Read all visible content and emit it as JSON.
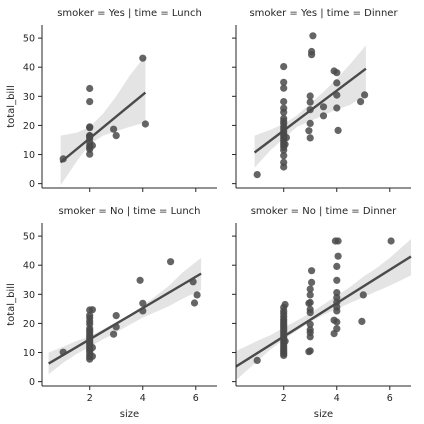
{
  "chart_data": [
    {
      "type": "scatter",
      "title": "smoker = Yes | time = Lunch",
      "xlabel": "",
      "ylabel": "total_bill",
      "xlim": [
        0.2,
        6.8
      ],
      "ylim": [
        -1.5,
        54.5
      ],
      "xticks": [
        2,
        4,
        6
      ],
      "yticks": [
        0,
        10,
        20,
        30,
        40,
        50
      ],
      "show_x_tick_labels": false,
      "show_y_tick_labels": true,
      "grid": false,
      "points": {
        "x": [
          1,
          2,
          2,
          2,
          2,
          2,
          2,
          2,
          2,
          2,
          2,
          2,
          2,
          2,
          2.1,
          2.9,
          3,
          4,
          4.1
        ],
        "y": [
          8.5,
          10.1,
          11.8,
          12.4,
          13,
          14.2,
          15.5,
          16.2,
          16.4,
          16.5,
          19.2,
          28.2,
          32.7,
          19.5,
          13.1,
          18.7,
          16.5,
          43.1,
          20.5
        ]
      },
      "regression": {
        "x0": 0.9,
        "y0": 7.3,
        "x1": 4.1,
        "y1": 31.3
      },
      "ci": {
        "x": [
          0.9,
          1.5,
          2,
          2.5,
          3,
          3.5,
          4.1
        ],
        "lower": [
          -0.5,
          7.5,
          13.5,
          16.5,
          18,
          19.5,
          21
        ],
        "upper": [
          16.5,
          17.5,
          19.5,
          24,
          30,
          37,
          44
        ]
      }
    },
    {
      "type": "scatter",
      "title": "smoker = Yes | time = Dinner",
      "xlabel": "",
      "ylabel": "",
      "xlim": [
        0.2,
        6.8
      ],
      "ylim": [
        -1.5,
        54.5
      ],
      "xticks": [
        2,
        4,
        6
      ],
      "yticks": [
        0,
        10,
        20,
        30,
        40,
        50
      ],
      "show_x_tick_labels": false,
      "show_y_tick_labels": false,
      "grid": false,
      "points": {
        "x": [
          1,
          2,
          2,
          2,
          2,
          2,
          2,
          2,
          2,
          2,
          2,
          2,
          2,
          2,
          2,
          2,
          2,
          2,
          2,
          2,
          2,
          2,
          2,
          2,
          2.05,
          2.1,
          2.95,
          3,
          3,
          3,
          3,
          3,
          3.05,
          3.1,
          3.5,
          3.5,
          3.9,
          4,
          4,
          4,
          4,
          4.05,
          4.9,
          5.05
        ],
        "y": [
          3.1,
          5.7,
          7.3,
          9.6,
          11.5,
          12.5,
          13.3,
          14,
          14.8,
          15.5,
          16.3,
          17,
          17.8,
          18.7,
          19.5,
          20.6,
          21.5,
          22.4,
          24.5,
          25.9,
          28.2,
          32.8,
          34.8,
          40.2,
          13.5,
          15.8,
          18.2,
          15.7,
          20.7,
          25.4,
          28,
          30.1,
          44.3,
          50.8,
          23.3,
          26.4,
          38.7,
          26,
          30.4,
          34.6,
          38.1,
          18.3,
          28.2,
          30.5
        ],
        "extra_x": [
          3.05
        ],
        "extra_y": [
          45.4
        ]
      },
      "regression": {
        "x0": 0.9,
        "y0": 10.7,
        "x1": 5.1,
        "y1": 39.5
      },
      "ci": {
        "x": [
          0.9,
          1.5,
          2,
          2.5,
          3,
          3.5,
          4,
          4.5,
          5.1
        ],
        "lower": [
          5.5,
          11.5,
          15.5,
          19.5,
          21.5,
          23.5,
          25.5,
          27,
          30.5
        ],
        "upper": [
          16.5,
          18.5,
          20.5,
          23.5,
          27.5,
          31.5,
          36,
          41,
          47.5
        ]
      }
    },
    {
      "type": "scatter",
      "title": "smoker = No | time = Lunch",
      "xlabel": "size",
      "ylabel": "total_bill",
      "xlim": [
        0.2,
        6.8
      ],
      "ylim": [
        -1.5,
        54.5
      ],
      "xticks": [
        2,
        4,
        6
      ],
      "yticks": [
        0,
        10,
        20,
        30,
        40,
        50
      ],
      "show_x_tick_labels": true,
      "show_y_tick_labels": true,
      "grid": false,
      "points": {
        "x": [
          1,
          2,
          2,
          2,
          2,
          2,
          2,
          2,
          2,
          2,
          2,
          2,
          2,
          2,
          2,
          2,
          2,
          2,
          2,
          2,
          2,
          2,
          2.1,
          2.1,
          2.1,
          2.9,
          3,
          3,
          3.9,
          4,
          4,
          5.05,
          5.9,
          5.95,
          6.05
        ],
        "y": [
          10.1,
          7.7,
          8.5,
          9.2,
          10.1,
          10.8,
          11.4,
          12,
          12.7,
          13.3,
          14,
          14.8,
          15.4,
          16.1,
          16.9,
          17.6,
          18.3,
          19.8,
          20.7,
          21.9,
          22.8,
          24.6,
          8.7,
          11.7,
          24.7,
          16.3,
          18.8,
          22.7,
          34.8,
          24.3,
          26.9,
          41.2,
          34.3,
          27,
          29.8
        ]
      },
      "regression": {
        "x0": 0.45,
        "y0": 6.2,
        "x1": 6.2,
        "y1": 37.1
      },
      "ci": {
        "x": [
          0.45,
          1,
          1.5,
          2,
          2.5,
          3,
          3.5,
          4,
          4.5,
          5,
          5.5,
          6.2
        ],
        "lower": [
          2.5,
          6.5,
          9.5,
          12,
          14.5,
          17,
          19.5,
          22,
          24,
          26,
          28.5,
          31.5
        ],
        "upper": [
          10,
          12,
          14,
          15.5,
          18,
          20.5,
          23,
          26,
          29.5,
          33,
          37.5,
          42.5
        ]
      }
    },
    {
      "type": "scatter",
      "title": "smoker = No | time = Dinner",
      "xlabel": "size",
      "ylabel": "",
      "xlim": [
        0.2,
        6.8
      ],
      "ylim": [
        -1.5,
        54.5
      ],
      "xticks": [
        2,
        4,
        6
      ],
      "yticks": [
        0,
        10,
        20,
        30,
        40,
        50
      ],
      "show_x_tick_labels": true,
      "show_y_tick_labels": false,
      "grid": false,
      "points": {
        "x": [
          1,
          2,
          2,
          2,
          2,
          2,
          2,
          2,
          2,
          2,
          2,
          2,
          2,
          2,
          2,
          2,
          2,
          2,
          2,
          2,
          2,
          2,
          2,
          2,
          2.05,
          2.05,
          2.95,
          2.95,
          3,
          3,
          3,
          3,
          3,
          3,
          3,
          3,
          3,
          3,
          3.05,
          3.05,
          3.9,
          3.9,
          3.95,
          4,
          4,
          4,
          4,
          4,
          4,
          4,
          4,
          4,
          4.05,
          4.05,
          4.95,
          5,
          6.05
        ],
        "y": [
          7.3,
          9,
          9.6,
          10.3,
          11,
          11.7,
          12.4,
          13.1,
          13.8,
          14.5,
          15.2,
          15.9,
          16.6,
          17.3,
          18,
          18.7,
          19.4,
          20.1,
          20.8,
          21.5,
          22.3,
          23.3,
          24.2,
          25.5,
          26.5,
          13.9,
          10.3,
          26.9,
          10.6,
          15.4,
          16.9,
          17.8,
          19.7,
          23.7,
          24.8,
          27.2,
          29.8,
          31.8,
          38.1,
          34.1,
          16.5,
          21.1,
          48.3,
          18.2,
          20.5,
          24.3,
          25.6,
          27.3,
          28.9,
          30.6,
          34.8,
          39.6,
          48.3,
          43.1,
          20.7,
          29.8,
          48.3
        ]
      },
      "regression": {
        "x0": 0.2,
        "y0": 5.2,
        "x1": 6.8,
        "y1": 43
      },
      "ci": {
        "x": [
          0.2,
          1,
          1.5,
          2,
          2.5,
          3,
          3.5,
          4,
          4.5,
          5,
          5.5,
          6,
          6.8
        ],
        "lower": [
          0.5,
          7,
          11,
          14.5,
          17.5,
          20.5,
          23,
          25,
          27,
          29,
          31,
          33,
          36.5
        ],
        "upper": [
          10.5,
          14,
          16,
          18.5,
          21,
          23.5,
          26.5,
          29.5,
          32.5,
          36,
          39,
          42.5,
          49
        ]
      }
    }
  ]
}
